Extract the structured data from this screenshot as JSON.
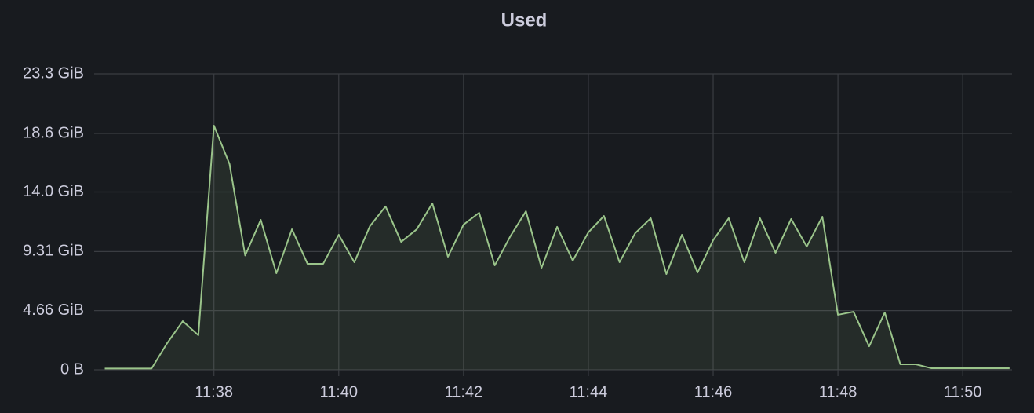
{
  "chart_data": {
    "type": "line",
    "title": "Used",
    "color": "#9ac48a",
    "grid": true,
    "x": [
      696.25,
      696.5,
      696.75,
      697,
      697.25,
      697.5,
      697.75,
      698,
      698.25,
      698.5,
      698.75,
      699,
      699.25,
      699.5,
      699.75,
      700,
      700.25,
      700.5,
      700.75,
      701,
      701.25,
      701.5,
      701.75,
      702,
      702.25,
      702.5,
      702.75,
      703,
      703.25,
      703.5,
      703.75,
      704,
      704.25,
      704.5,
      704.75,
      705,
      705.25,
      705.5,
      705.75,
      706,
      706.25,
      706.5,
      706.75,
      707,
      707.25,
      707.5,
      707.75,
      708,
      708.25,
      708.5,
      708.75,
      709,
      709.25,
      709.5,
      709.75,
      710,
      710.25,
      710.5,
      710.75
    ],
    "values": [
      0.1,
      0.1,
      0.1,
      0.1,
      2.1,
      3.83,
      2.72,
      19.22,
      16.19,
      9.0,
      11.8,
      7.6,
      11.06,
      8.34,
      8.34,
      10.63,
      8.47,
      11.31,
      12.86,
      10.07,
      11.06,
      13.1,
      8.9,
      11.43,
      12.36,
      8.22,
      10.51,
      12.48,
      8.03,
      11.25,
      8.59,
      10.82,
      12.11,
      8.47,
      10.75,
      11.93,
      7.54,
      10.63,
      7.66,
      10.2,
      11.93,
      8.47,
      11.93,
      9.21,
      11.87,
      9.7,
      12.05,
      4.33,
      4.57,
      1.85,
      4.51,
      0.43,
      0.43,
      0.12,
      0.12,
      0.12,
      0.12,
      0.12,
      0.12
    ],
    "xlim": [
      696.08,
      710.79
    ],
    "xticks": [
      {
        "value": 698,
        "label": "11:38"
      },
      {
        "value": 700,
        "label": "11:40"
      },
      {
        "value": 702,
        "label": "11:42"
      },
      {
        "value": 704,
        "label": "11:44"
      },
      {
        "value": 706,
        "label": "11:46"
      },
      {
        "value": 708,
        "label": "11:48"
      },
      {
        "value": 710,
        "label": "11:50"
      }
    ],
    "ylim": [
      0,
      23.3
    ],
    "yticks": [
      {
        "value": 0,
        "label": "0 B"
      },
      {
        "value": 4.66,
        "label": "4.66 GiB"
      },
      {
        "value": 9.31,
        "label": "9.31 GiB"
      },
      {
        "value": 14.0,
        "label": "14.0 GiB"
      },
      {
        "value": 18.6,
        "label": "18.6 GiB"
      },
      {
        "value": 23.3,
        "label": "23.3 GiB"
      }
    ]
  }
}
